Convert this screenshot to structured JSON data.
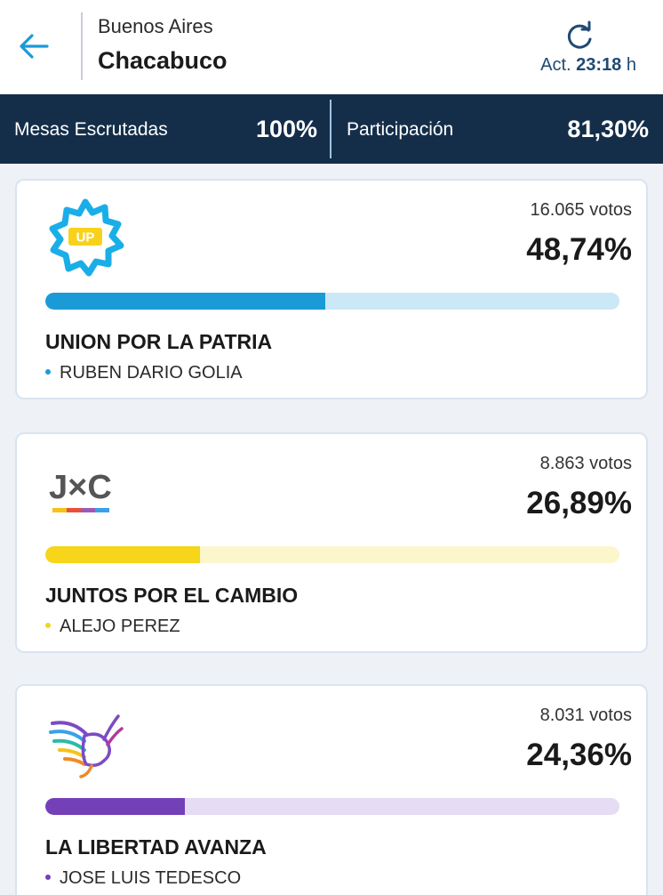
{
  "header": {
    "province": "Buenos Aires",
    "city": "Chacabuco",
    "updated_prefix": "Act.",
    "updated_time": "23:18",
    "updated_suffix": "h"
  },
  "stats": {
    "mesas_label": "Mesas Escrutadas",
    "mesas_value": "100%",
    "participacion_label": "Participación",
    "participacion_value": "81,30%"
  },
  "results": [
    {
      "votes": "16.065 votos",
      "percent": "48,74%",
      "share": 0.4874,
      "party": "UNION POR LA PATRIA",
      "candidate": "RUBEN DARIO GOLIA",
      "logo_text": "UP",
      "color": "#1a9bd8",
      "track_color": "#cbe8f6"
    },
    {
      "votes": "8.863 votos",
      "percent": "26,89%",
      "share": 0.2689,
      "party": "JUNTOS POR EL CAMBIO",
      "candidate": "ALEJO PEREZ",
      "logo_text": "J×C",
      "color": "#f6d51a",
      "track_color": "#fcf6cd"
    },
    {
      "votes": "8.031 votos",
      "percent": "24,36%",
      "share": 0.2436,
      "party": "LA LIBERTAD AVANZA",
      "candidate": "JOSE LUIS TEDESCO",
      "logo_text": "",
      "color": "#7440b8",
      "track_color": "#e6dcf3"
    }
  ],
  "icons": {
    "back": "arrow-left-icon",
    "refresh": "refresh-icon"
  },
  "colors": {
    "accent": "#1a9bd8",
    "stats_bg": "#142e4a"
  }
}
